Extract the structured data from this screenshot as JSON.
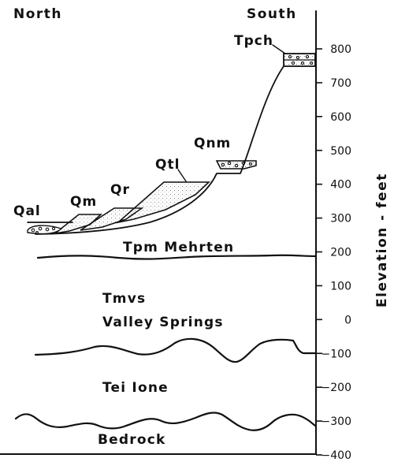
{
  "headings": {
    "north": "North",
    "south": "South"
  },
  "terrace_labels": {
    "tpch": "Tpch",
    "qnm": "Qnm",
    "qtl": "Qtl",
    "qr": "Qr",
    "qm": "Qm",
    "qal": "Qal"
  },
  "formations": {
    "mehrten": "Tpm Mehrten",
    "valley_springs_code": "Tmvs",
    "valley_springs_name": "Valley Springs",
    "ione": "Tei Ione",
    "bedrock": "Bedrock"
  },
  "axis": {
    "label": "Elevation - feet",
    "ticks": [
      "800",
      "700",
      "600",
      "500",
      "400",
      "300",
      "200",
      "100",
      "0",
      "−100",
      "−200",
      "−300",
      "−400"
    ],
    "tick_values": [
      800,
      700,
      600,
      500,
      400,
      300,
      200,
      100,
      0,
      -100,
      -200,
      -300,
      -400
    ],
    "range": [
      -400,
      800
    ]
  }
}
